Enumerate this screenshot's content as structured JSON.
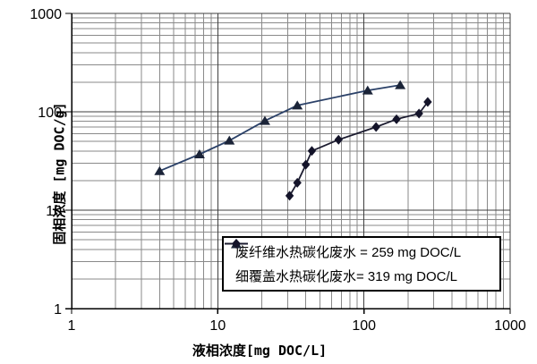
{
  "chart_data": {
    "type": "line",
    "title": "",
    "x_axis": {
      "label": "液相浓度[mg DOC/L]",
      "scale": "log",
      "min": 1,
      "max": 1000,
      "ticks": [
        1,
        10,
        100,
        1000
      ],
      "tick_labels": [
        "1",
        "10",
        "100",
        "1000"
      ]
    },
    "y_axis": {
      "label": "固相浓度 [mg DOC/g]",
      "scale": "log",
      "min": 1,
      "max": 1000,
      "ticks": [
        1,
        10,
        100,
        1000
      ],
      "tick_labels": [
        "1",
        "10",
        "100",
        "1000"
      ]
    },
    "grid": {
      "major": true,
      "minor": true,
      "major_color": "#3f3f3f",
      "minor_color": "#8a8a8a"
    },
    "legend_position": "inside-bottom-right",
    "series": [
      {
        "name": "废纤维水热碳化废水 = 259 mg DOC/L",
        "marker": "triangle",
        "line_color": "#2b4168",
        "marker_color": "#1b2438",
        "points": [
          [
            4,
            25
          ],
          [
            7.5,
            37
          ],
          [
            12,
            51
          ],
          [
            21,
            81
          ],
          [
            35,
            116
          ],
          [
            106,
            165
          ],
          [
            177,
            187
          ]
        ]
      },
      {
        "name": "细覆盖水热碳化废水= 319 mg DOC/L",
        "marker": "diamond",
        "line_color": "#1c1c30",
        "marker_color": "#14142a",
        "points": [
          [
            31,
            14
          ],
          [
            35,
            19
          ],
          [
            40,
            29
          ],
          [
            44,
            40
          ],
          [
            67,
            52
          ],
          [
            121,
            70
          ],
          [
            167,
            84
          ],
          [
            238,
            96
          ],
          [
            273,
            126
          ]
        ]
      }
    ]
  }
}
